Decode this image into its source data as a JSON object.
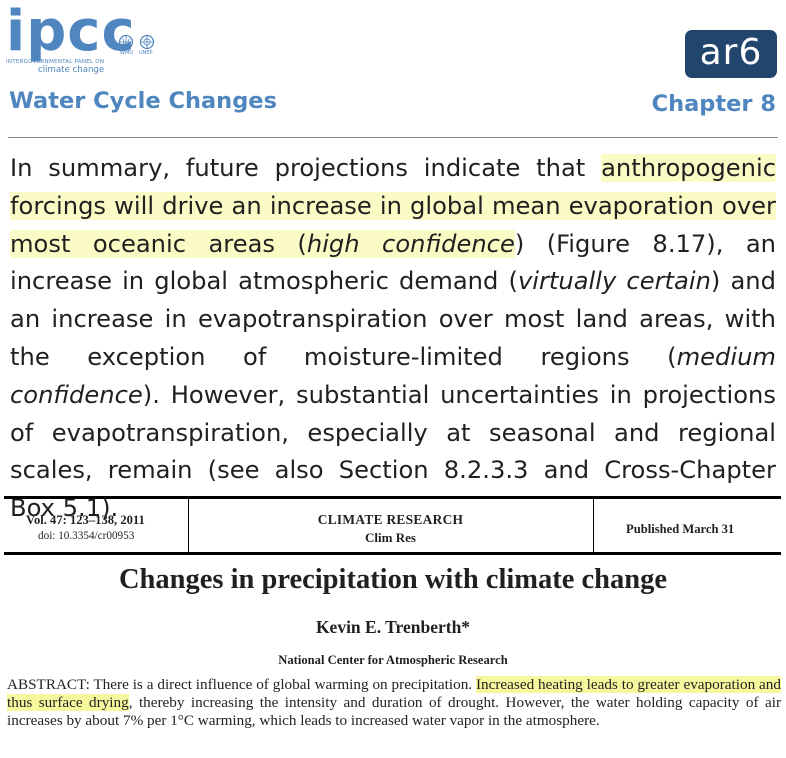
{
  "header": {
    "logo_wordmark": "ipcc",
    "logo_line1": "INTERGOVERNMENTAL PANEL ON",
    "logo_line2": "climate change",
    "wmo_label": "WMO",
    "unep_label": "UNEP",
    "badge": "ar6",
    "section_title": "Water Cycle Changes",
    "chapter": "Chapter 8"
  },
  "summary": {
    "p1": "In summary, future projections indicate that ",
    "h1": "anthropogenic forcings will drive an increase in global mean evaporation over most oceanic areas (",
    "h1_em": "high confidence",
    "p2": ") (Figure 8.17), an increase in global atmospheric demand (",
    "em2": "virtually certain",
    "p3": ") and an increase in evapotranspiration over most land areas, with the exception of moisture-limited regions (",
    "em3": "medium confidence",
    "p4": "). However, substantial uncertainties in projections of evapotranspiration, especially at seasonal and regional scales, remain (see also Section 8.2.3.3 and Cross-Chapter Box 5.1)."
  },
  "paper": {
    "volume": "Vol. 47: 123–138, 2011",
    "doi": "doi: 10.3354/cr00953",
    "journal": "CLIMATE RESEARCH",
    "journal_abbrev": "Clim Res",
    "published": "Published March 31",
    "title": "Changes in precipitation with climate change",
    "author": "Kevin E. Trenberth*",
    "affiliation": "National Center for Atmospheric Research",
    "abstract_a": "ABSTRACT: There is a direct influence of global warming on precipitation. ",
    "abstract_hl": "Increased heating leads to greater evaporation and thus surface drying",
    "abstract_b": ", thereby increasing the intensity and duration of drought. However, the water holding capacity of air increases by about 7% per 1°C warming, which leads to increased water vapor in the atmosphere."
  },
  "colors": {
    "ipcc_blue": "#4f86bf",
    "badge_navy": "#22456e",
    "highlight": "#fbfbc5"
  }
}
